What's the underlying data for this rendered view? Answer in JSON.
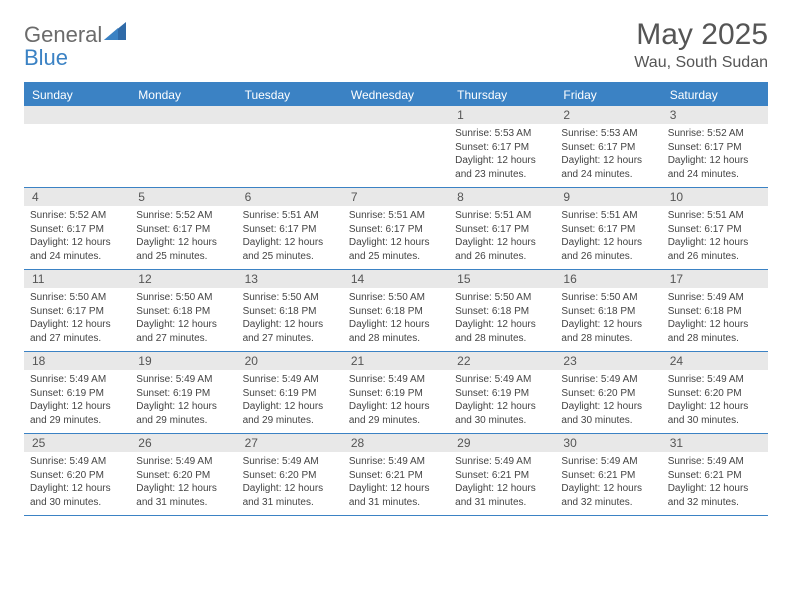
{
  "brand": {
    "part1": "General",
    "part2": "Blue"
  },
  "title": "May 2025",
  "location": "Wau, South Sudan",
  "colors": {
    "accent": "#3b82c4",
    "daynum_bg": "#e8e8e8",
    "text": "#444444",
    "header_text": "#555555"
  },
  "weekdays": [
    "Sunday",
    "Monday",
    "Tuesday",
    "Wednesday",
    "Thursday",
    "Friday",
    "Saturday"
  ],
  "weeks": [
    [
      {
        "n": "",
        "sunrise": "",
        "sunset": "",
        "daylight": ""
      },
      {
        "n": "",
        "sunrise": "",
        "sunset": "",
        "daylight": ""
      },
      {
        "n": "",
        "sunrise": "",
        "sunset": "",
        "daylight": ""
      },
      {
        "n": "",
        "sunrise": "",
        "sunset": "",
        "daylight": ""
      },
      {
        "n": "1",
        "sunrise": "Sunrise: 5:53 AM",
        "sunset": "Sunset: 6:17 PM",
        "daylight": "Daylight: 12 hours and 23 minutes."
      },
      {
        "n": "2",
        "sunrise": "Sunrise: 5:53 AM",
        "sunset": "Sunset: 6:17 PM",
        "daylight": "Daylight: 12 hours and 24 minutes."
      },
      {
        "n": "3",
        "sunrise": "Sunrise: 5:52 AM",
        "sunset": "Sunset: 6:17 PM",
        "daylight": "Daylight: 12 hours and 24 minutes."
      }
    ],
    [
      {
        "n": "4",
        "sunrise": "Sunrise: 5:52 AM",
        "sunset": "Sunset: 6:17 PM",
        "daylight": "Daylight: 12 hours and 24 minutes."
      },
      {
        "n": "5",
        "sunrise": "Sunrise: 5:52 AM",
        "sunset": "Sunset: 6:17 PM",
        "daylight": "Daylight: 12 hours and 25 minutes."
      },
      {
        "n": "6",
        "sunrise": "Sunrise: 5:51 AM",
        "sunset": "Sunset: 6:17 PM",
        "daylight": "Daylight: 12 hours and 25 minutes."
      },
      {
        "n": "7",
        "sunrise": "Sunrise: 5:51 AM",
        "sunset": "Sunset: 6:17 PM",
        "daylight": "Daylight: 12 hours and 25 minutes."
      },
      {
        "n": "8",
        "sunrise": "Sunrise: 5:51 AM",
        "sunset": "Sunset: 6:17 PM",
        "daylight": "Daylight: 12 hours and 26 minutes."
      },
      {
        "n": "9",
        "sunrise": "Sunrise: 5:51 AM",
        "sunset": "Sunset: 6:17 PM",
        "daylight": "Daylight: 12 hours and 26 minutes."
      },
      {
        "n": "10",
        "sunrise": "Sunrise: 5:51 AM",
        "sunset": "Sunset: 6:17 PM",
        "daylight": "Daylight: 12 hours and 26 minutes."
      }
    ],
    [
      {
        "n": "11",
        "sunrise": "Sunrise: 5:50 AM",
        "sunset": "Sunset: 6:17 PM",
        "daylight": "Daylight: 12 hours and 27 minutes."
      },
      {
        "n": "12",
        "sunrise": "Sunrise: 5:50 AM",
        "sunset": "Sunset: 6:18 PM",
        "daylight": "Daylight: 12 hours and 27 minutes."
      },
      {
        "n": "13",
        "sunrise": "Sunrise: 5:50 AM",
        "sunset": "Sunset: 6:18 PM",
        "daylight": "Daylight: 12 hours and 27 minutes."
      },
      {
        "n": "14",
        "sunrise": "Sunrise: 5:50 AM",
        "sunset": "Sunset: 6:18 PM",
        "daylight": "Daylight: 12 hours and 28 minutes."
      },
      {
        "n": "15",
        "sunrise": "Sunrise: 5:50 AM",
        "sunset": "Sunset: 6:18 PM",
        "daylight": "Daylight: 12 hours and 28 minutes."
      },
      {
        "n": "16",
        "sunrise": "Sunrise: 5:50 AM",
        "sunset": "Sunset: 6:18 PM",
        "daylight": "Daylight: 12 hours and 28 minutes."
      },
      {
        "n": "17",
        "sunrise": "Sunrise: 5:49 AM",
        "sunset": "Sunset: 6:18 PM",
        "daylight": "Daylight: 12 hours and 28 minutes."
      }
    ],
    [
      {
        "n": "18",
        "sunrise": "Sunrise: 5:49 AM",
        "sunset": "Sunset: 6:19 PM",
        "daylight": "Daylight: 12 hours and 29 minutes."
      },
      {
        "n": "19",
        "sunrise": "Sunrise: 5:49 AM",
        "sunset": "Sunset: 6:19 PM",
        "daylight": "Daylight: 12 hours and 29 minutes."
      },
      {
        "n": "20",
        "sunrise": "Sunrise: 5:49 AM",
        "sunset": "Sunset: 6:19 PM",
        "daylight": "Daylight: 12 hours and 29 minutes."
      },
      {
        "n": "21",
        "sunrise": "Sunrise: 5:49 AM",
        "sunset": "Sunset: 6:19 PM",
        "daylight": "Daylight: 12 hours and 29 minutes."
      },
      {
        "n": "22",
        "sunrise": "Sunrise: 5:49 AM",
        "sunset": "Sunset: 6:19 PM",
        "daylight": "Daylight: 12 hours and 30 minutes."
      },
      {
        "n": "23",
        "sunrise": "Sunrise: 5:49 AM",
        "sunset": "Sunset: 6:20 PM",
        "daylight": "Daylight: 12 hours and 30 minutes."
      },
      {
        "n": "24",
        "sunrise": "Sunrise: 5:49 AM",
        "sunset": "Sunset: 6:20 PM",
        "daylight": "Daylight: 12 hours and 30 minutes."
      }
    ],
    [
      {
        "n": "25",
        "sunrise": "Sunrise: 5:49 AM",
        "sunset": "Sunset: 6:20 PM",
        "daylight": "Daylight: 12 hours and 30 minutes."
      },
      {
        "n": "26",
        "sunrise": "Sunrise: 5:49 AM",
        "sunset": "Sunset: 6:20 PM",
        "daylight": "Daylight: 12 hours and 31 minutes."
      },
      {
        "n": "27",
        "sunrise": "Sunrise: 5:49 AM",
        "sunset": "Sunset: 6:20 PM",
        "daylight": "Daylight: 12 hours and 31 minutes."
      },
      {
        "n": "28",
        "sunrise": "Sunrise: 5:49 AM",
        "sunset": "Sunset: 6:21 PM",
        "daylight": "Daylight: 12 hours and 31 minutes."
      },
      {
        "n": "29",
        "sunrise": "Sunrise: 5:49 AM",
        "sunset": "Sunset: 6:21 PM",
        "daylight": "Daylight: 12 hours and 31 minutes."
      },
      {
        "n": "30",
        "sunrise": "Sunrise: 5:49 AM",
        "sunset": "Sunset: 6:21 PM",
        "daylight": "Daylight: 12 hours and 32 minutes."
      },
      {
        "n": "31",
        "sunrise": "Sunrise: 5:49 AM",
        "sunset": "Sunset: 6:21 PM",
        "daylight": "Daylight: 12 hours and 32 minutes."
      }
    ]
  ]
}
